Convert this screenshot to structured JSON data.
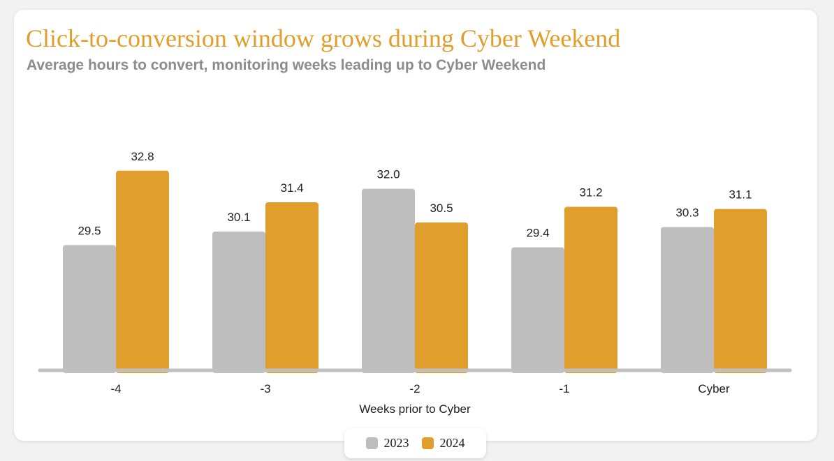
{
  "chart_data": {
    "type": "bar",
    "title": "Click-to-conversion window grows during Cyber Weekend",
    "subtitle": "Average hours to convert, monitoring weeks leading up to Cyber Weekend",
    "xlabel": "Weeks prior to Cyber",
    "ylabel": "",
    "categories": [
      "-4",
      "-3",
      "-2",
      "-1",
      "Cyber"
    ],
    "series": [
      {
        "name": "2023",
        "color": "#bebebe",
        "values": [
          29.5,
          30.1,
          32.0,
          29.4,
          30.3
        ]
      },
      {
        "name": "2024",
        "color": "#e09e2c",
        "values": [
          32.8,
          31.4,
          30.5,
          31.2,
          31.1
        ]
      }
    ],
    "ylim": [
      24,
      34
    ],
    "grid": false,
    "legend_position": "bottom-center",
    "data_labels": true
  }
}
